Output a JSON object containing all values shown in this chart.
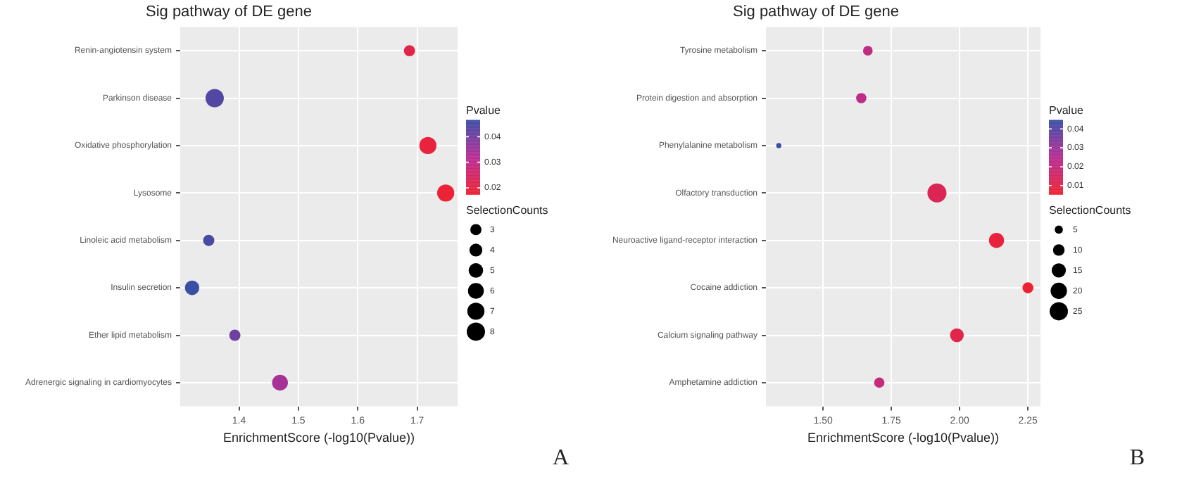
{
  "chart_data": [
    {
      "type": "bubble",
      "title": "Sig pathway of DE gene",
      "xlabel": "EnrichmentScore (-log10(Pvalue))",
      "orientation": "horizontal",
      "categories": [
        "Renin-angiotensin system",
        "Parkinson disease",
        "Oxidative phosphorylation",
        "Lysosome",
        "Linoleic acid metabolism",
        "Insulin secretion",
        "Ether lipid metabolism",
        "Adrenergic signaling in cardiomyocytes"
      ],
      "values": [
        1.687,
        1.359,
        1.718,
        1.748,
        1.349,
        1.321,
        1.393,
        1.469
      ],
      "sizes": [
        3,
        8,
        7,
        7,
        3,
        5,
        3,
        6
      ],
      "cvalues": [
        0.0206,
        0.0438,
        0.0191,
        0.0179,
        0.0448,
        0.0465,
        0.0405,
        0.034
      ],
      "xlim": [
        1.301,
        1.768
      ],
      "xticks": [
        1.4,
        1.5,
        1.6,
        1.7
      ],
      "clabel": "Pvalue",
      "clim": [
        0.0174,
        0.0466
      ],
      "cticks": [
        0.02,
        0.03,
        0.04
      ],
      "legend_title": "SelectionCounts",
      "size_legend": [
        3,
        4,
        5,
        6,
        7,
        8
      ],
      "grid": true,
      "annotations": [
        "A"
      ]
    },
    {
      "type": "bubble",
      "title": "Sig pathway of DE gene",
      "xlabel": "EnrichmentScore (-log10(Pvalue))",
      "orientation": "horizontal",
      "categories": [
        "Tyrosine metabolism",
        "Protein digestion and absorption",
        "Phenylalanine metabolism",
        "Olfactory transduction",
        "Neuroactive ligand-receptor interaction",
        "Cocaine addiction",
        "Calcium signaling pathway",
        "Amphetamine addiction"
      ],
      "values": [
        1.664,
        1.64,
        1.338,
        1.917,
        2.135,
        2.25,
        1.99,
        1.706
      ],
      "sizes": [
        7,
        8,
        2,
        27,
        17,
        9,
        14,
        8
      ],
      "cvalues": [
        0.0217,
        0.0229,
        0.0448,
        0.0121,
        0.0073,
        0.0056,
        0.0102,
        0.0197
      ],
      "xlim": [
        1.291,
        2.296
      ],
      "xticks": [
        {
          "value": 1.5,
          "label": "1.50"
        },
        {
          "value": 1.75,
          "label": "1.75"
        },
        {
          "value": 2,
          "label": "2.00"
        },
        {
          "value": 2.25,
          "label": "2.25"
        }
      ],
      "clabel": "Pvalue",
      "clim": [
        0.0053,
        0.0448
      ],
      "cticks": [
        0.01,
        0.02,
        0.03,
        0.04
      ],
      "legend_title": "SelectionCounts",
      "size_legend": [
        5,
        10,
        15,
        20,
        25
      ],
      "grid": true,
      "annotations": [
        "B"
      ]
    }
  ]
}
